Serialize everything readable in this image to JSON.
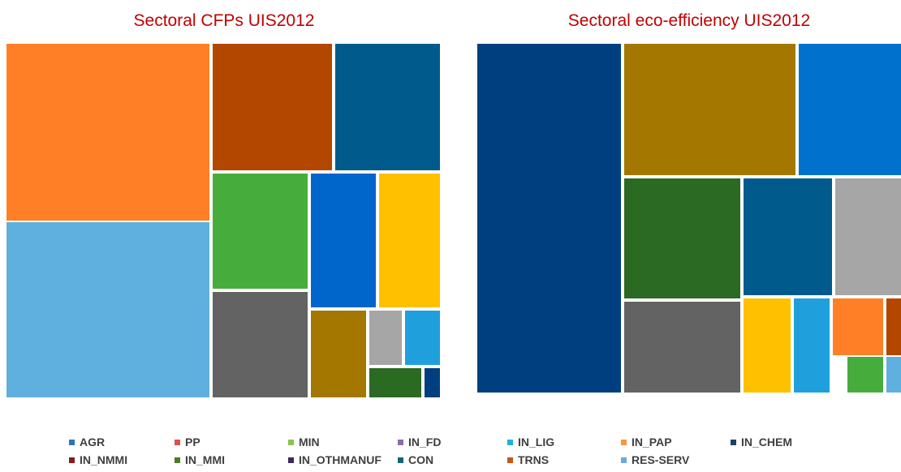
{
  "chart_data": [
    {
      "type": "treemap",
      "title": "Sectoral CFPs UIS2012",
      "tiles": [
        {
          "category": "IN_PAP",
          "color": "#ff7f27"
        },
        {
          "category": "RES-SERV",
          "color": "#5fb0de"
        },
        {
          "category": "TRNS",
          "color": "#b34700"
        },
        {
          "category": "CON",
          "color": "#005a8c"
        },
        {
          "category": "MIN",
          "color": "#46ad3c"
        },
        {
          "category": "AGR",
          "color": "#0066cc"
        },
        {
          "category": "",
          "color": "#ffc000"
        },
        {
          "category": "",
          "color": "#636363"
        },
        {
          "category": "",
          "color": "#a37700"
        },
        {
          "category": "",
          "color": "#a6a6a6"
        },
        {
          "category": "IN_LIG",
          "color": "#1fa0dc"
        },
        {
          "category": "IN_MMI",
          "color": "#2a6a22"
        },
        {
          "category": "IN_CHEM",
          "color": "#003f7f"
        }
      ]
    },
    {
      "type": "treemap",
      "title": "Sectoral eco-efficiency UIS2012",
      "tiles": [
        {
          "category": "IN_CHEM",
          "color": "#003f7f"
        },
        {
          "category": "",
          "color": "#a37700"
        },
        {
          "category": "AGR",
          "color": "#0072ce"
        },
        {
          "category": "IN_MMI",
          "color": "#2a6a22"
        },
        {
          "category": "CON",
          "color": "#005a8c"
        },
        {
          "category": "",
          "color": "#a6a6a6"
        },
        {
          "category": "",
          "color": "#636363"
        },
        {
          "category": "",
          "color": "#ffc000"
        },
        {
          "category": "IN_LIG",
          "color": "#1fa0dc"
        },
        {
          "category": "IN_PAP",
          "color": "#ff7f27"
        },
        {
          "category": "TRNS",
          "color": "#b34700"
        },
        {
          "category": "MIN",
          "color": "#46ad3c"
        },
        {
          "category": "RES-SERV",
          "color": "#5fb0de"
        }
      ]
    }
  ],
  "legend": [
    {
      "label": "AGR",
      "color": "#2e75b6"
    },
    {
      "label": "PP",
      "color": "#e05050"
    },
    {
      "label": "MIN",
      "color": "#8cc44c"
    },
    {
      "label": "IN_FD",
      "color": "#8e6bb0"
    },
    {
      "label": "IN_LIG",
      "color": "#1fb0d8"
    },
    {
      "label": "IN_PAP",
      "color": "#f7963c"
    },
    {
      "label": "IN_CHEM",
      "color": "#1f3f6e"
    },
    {
      "label": "IN_NMMI",
      "color": "#8b1a1a"
    },
    {
      "label": "IN_MMI",
      "color": "#4e7a26"
    },
    {
      "label": "IN_OTHMANUF",
      "color": "#3b2a5a"
    },
    {
      "label": "CON",
      "color": "#17657a"
    },
    {
      "label": "TRNS",
      "color": "#c65911"
    },
    {
      "label": "RES-SERV",
      "color": "#6fa8dc"
    }
  ]
}
